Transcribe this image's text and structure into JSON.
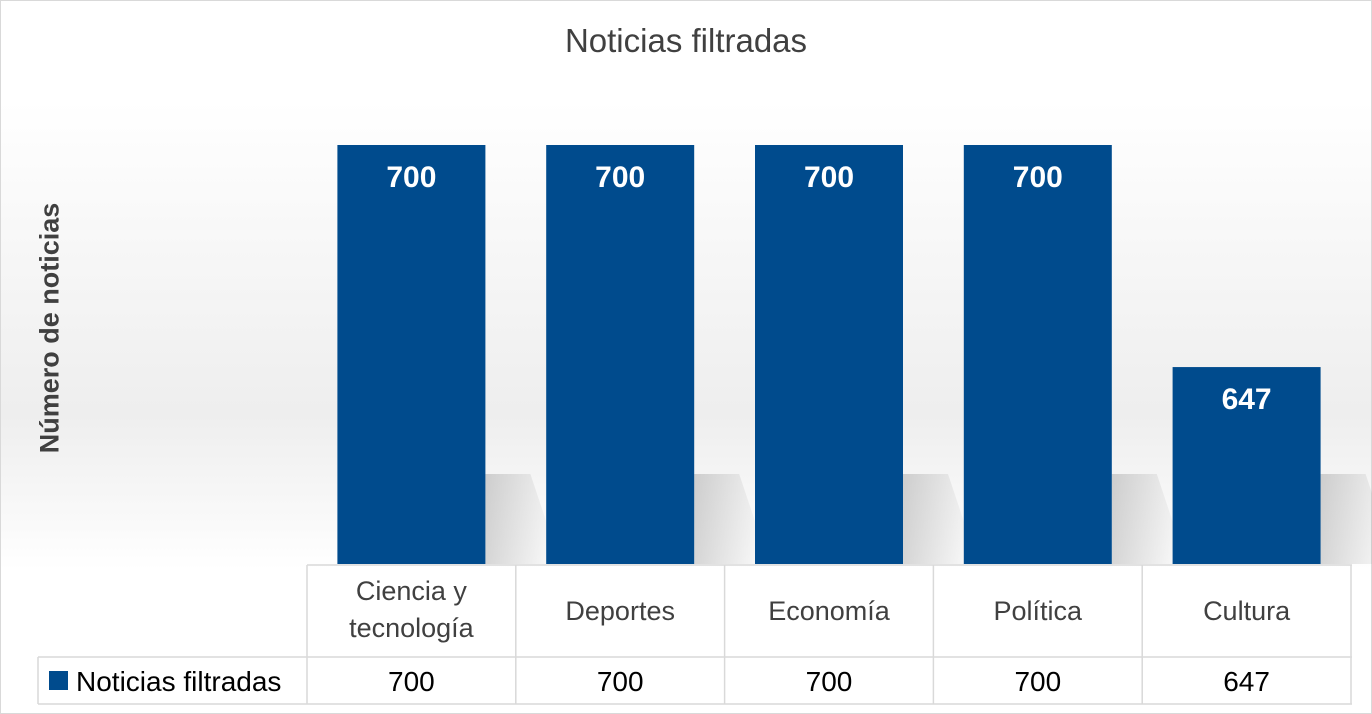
{
  "chart_data": {
    "type": "bar",
    "title": "Noticias filtradas",
    "ylabel": "Número de noticias",
    "xlabel": "",
    "categories": [
      "Ciencia y tecnología",
      "Deportes",
      "Economía",
      "Política",
      "Cultura"
    ],
    "category_lines": [
      [
        "Ciencia y",
        "tecnología"
      ],
      [
        "Deportes"
      ],
      [
        "Economía"
      ],
      [
        "Política"
      ],
      [
        "Cultura"
      ]
    ],
    "series": [
      {
        "name": "Noticias filtradas",
        "values": [
          700,
          700,
          700,
          700,
          647
        ],
        "color": "#004B8D"
      }
    ],
    "ylim": [
      600,
      720
    ],
    "data_labels": true,
    "data_table": true,
    "gridlines": false,
    "legend": "data-table"
  }
}
